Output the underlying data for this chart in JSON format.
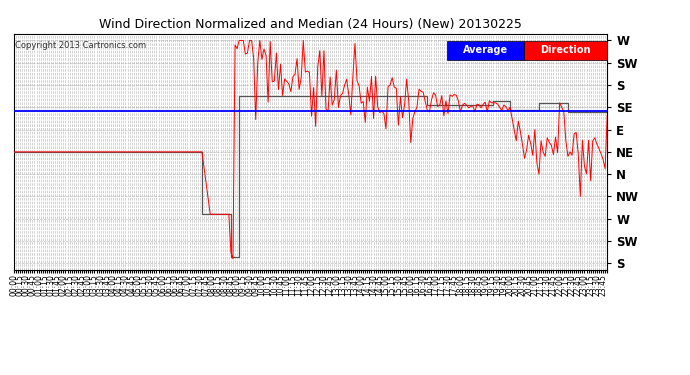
{
  "title": "Wind Direction Normalized and Median (24 Hours) (New) 20130225",
  "copyright": "Copyright 2013 Cartronics.com",
  "background_color": "#ffffff",
  "plot_bg_color": "#ffffff",
  "grid_color": "#b0b0b0",
  "ytick_labels": [
    "W",
    "SW",
    "S",
    "SE",
    "E",
    "NE",
    "N",
    "NW",
    "W",
    "SW",
    "S"
  ],
  "ytick_values": [
    10,
    9,
    8,
    7,
    6,
    5,
    4,
    3,
    2,
    1,
    0
  ],
  "ylim": [
    -0.3,
    10.3
  ],
  "avg_direction_value": 6.85,
  "legend_label_avg": "Average",
  "legend_label_dir": "Direction",
  "n_points": 288,
  "avg_line_color": "blue",
  "median_line_color": "#555555",
  "wind_line_color": "red"
}
